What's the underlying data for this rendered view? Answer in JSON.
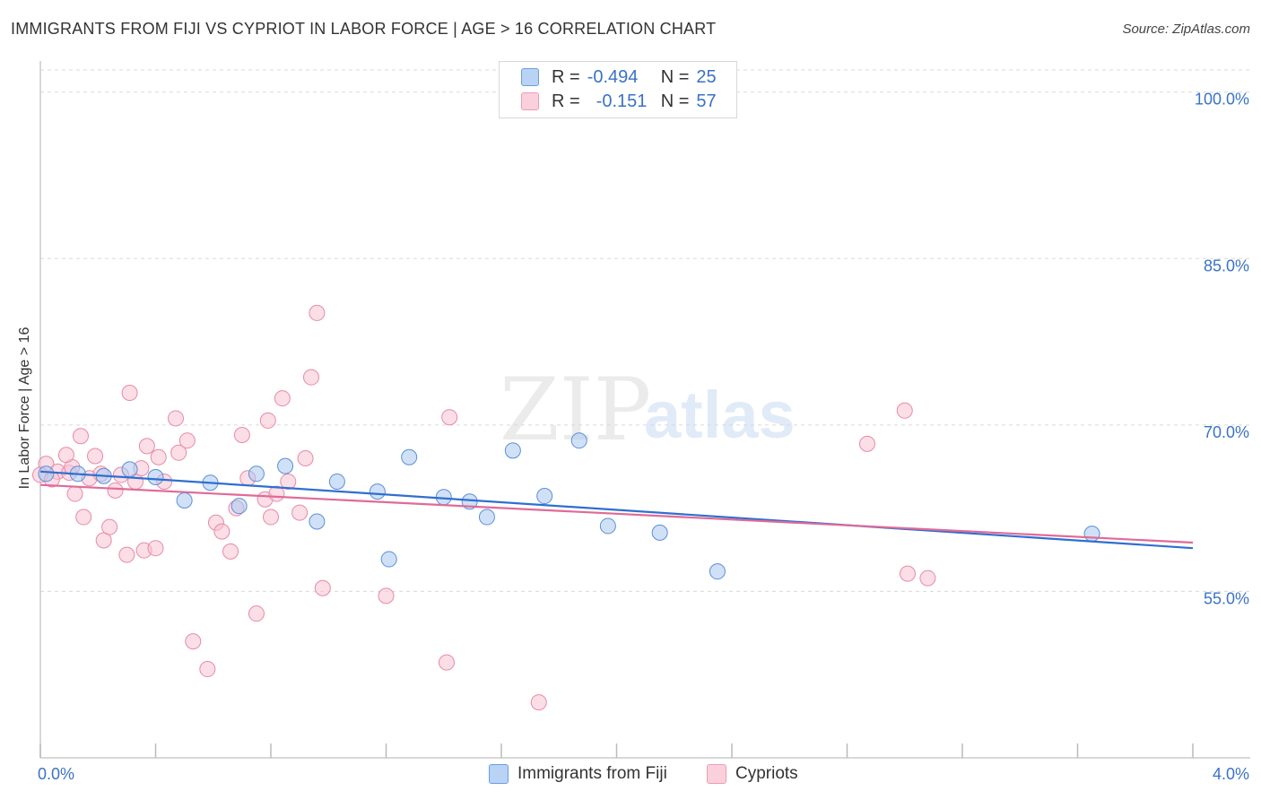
{
  "header": {
    "title": "IMMIGRANTS FROM FIJI VS CYPRIOT IN LABOR FORCE | AGE > 16 CORRELATION CHART",
    "source": "Source: ZipAtlas.com"
  },
  "watermark": {
    "zip": "ZIP",
    "atlas": "atlas"
  },
  "legend": {
    "series1": {
      "r_label": "R =",
      "r_value": "-0.494",
      "n_label": "N =",
      "n_value": "25"
    },
    "series2": {
      "r_label": "R =",
      "r_value": "-0.151",
      "n_label": "N =",
      "n_value": "57"
    }
  },
  "bottom_legend": {
    "series1": "Immigrants from Fiji",
    "series2": "Cypriots"
  },
  "colors": {
    "blue_fill": "#a9c8f0",
    "blue_stroke": "#5b8fd8",
    "blue_line": "#2f6fd0",
    "pink_fill": "#f7c2d2",
    "pink_stroke": "#e88aa8",
    "pink_line": "#e06a98",
    "tick_label": "#3a72c8",
    "grid": "#d9d9d9"
  },
  "chart_data": {
    "type": "scatter",
    "title": "IMMIGRANTS FROM FIJI VS CYPRIOT IN LABOR FORCE | AGE > 16 CORRELATION CHART",
    "xlabel": "",
    "ylabel": "In Labor Force | Age > 16",
    "xlim": [
      0,
      4.0
    ],
    "ylim": [
      40.0,
      102.0
    ],
    "x_tick_labels": [
      "0.0%",
      "4.0%"
    ],
    "y_ticks": [
      55,
      70,
      85,
      100
    ],
    "y_tick_labels": [
      "55.0%",
      "70.0%",
      "85.0%",
      "100.0%"
    ],
    "series": [
      {
        "name": "Immigrants from Fiji",
        "color": "#a9c8f0",
        "points": [
          [
            0.02,
            65.6
          ],
          [
            0.13,
            65.6
          ],
          [
            0.22,
            65.4
          ],
          [
            0.31,
            66.0
          ],
          [
            0.4,
            65.3
          ],
          [
            0.5,
            63.2
          ],
          [
            0.59,
            64.8
          ],
          [
            0.69,
            62.7
          ],
          [
            0.75,
            65.6
          ],
          [
            0.85,
            66.3
          ],
          [
            0.96,
            61.3
          ],
          [
            1.03,
            64.9
          ],
          [
            1.17,
            64.0
          ],
          [
            1.21,
            57.9
          ],
          [
            1.28,
            67.1
          ],
          [
            1.4,
            63.5
          ],
          [
            1.49,
            63.1
          ],
          [
            1.55,
            61.7
          ],
          [
            1.64,
            67.7
          ],
          [
            1.75,
            63.6
          ],
          [
            1.87,
            68.6
          ],
          [
            1.97,
            60.9
          ],
          [
            2.15,
            60.3
          ],
          [
            2.35,
            56.8
          ],
          [
            3.65,
            60.2
          ]
        ],
        "trend": {
          "x": [
            0.0,
            4.0
          ],
          "y": [
            65.8,
            58.9
          ]
        }
      },
      {
        "name": "Cypriots",
        "color": "#f7c2d2",
        "points": [
          [
            0.02,
            66.5
          ],
          [
            0.06,
            65.8
          ],
          [
            0.1,
            65.7
          ],
          [
            0.11,
            66.2
          ],
          [
            0.12,
            63.8
          ],
          [
            0.14,
            69.0
          ],
          [
            0.15,
            61.7
          ],
          [
            0.17,
            65.2
          ],
          [
            0.19,
            67.2
          ],
          [
            0.21,
            65.6
          ],
          [
            0.22,
            59.6
          ],
          [
            0.24,
            60.8
          ],
          [
            0.26,
            64.1
          ],
          [
            0.28,
            65.5
          ],
          [
            0.3,
            58.3
          ],
          [
            0.31,
            72.9
          ],
          [
            0.33,
            64.9
          ],
          [
            0.35,
            66.1
          ],
          [
            0.36,
            58.7
          ],
          [
            0.37,
            68.1
          ],
          [
            0.4,
            58.9
          ],
          [
            0.41,
            67.1
          ],
          [
            0.43,
            64.9
          ],
          [
            0.47,
            70.6
          ],
          [
            0.48,
            67.5
          ],
          [
            0.51,
            68.6
          ],
          [
            0.53,
            50.5
          ],
          [
            0.58,
            48.0
          ],
          [
            0.61,
            61.2
          ],
          [
            0.63,
            60.4
          ],
          [
            0.66,
            58.6
          ],
          [
            0.68,
            62.5
          ],
          [
            0.7,
            69.1
          ],
          [
            0.72,
            65.2
          ],
          [
            0.75,
            53.0
          ],
          [
            0.78,
            63.3
          ],
          [
            0.79,
            70.4
          ],
          [
            0.8,
            61.7
          ],
          [
            0.82,
            63.8
          ],
          [
            0.84,
            72.4
          ],
          [
            0.86,
            64.9
          ],
          [
            0.9,
            62.1
          ],
          [
            0.92,
            67.0
          ],
          [
            0.94,
            74.3
          ],
          [
            0.96,
            80.1
          ],
          [
            0.98,
            55.3
          ],
          [
            1.2,
            54.6
          ],
          [
            1.41,
            48.6
          ],
          [
            1.42,
            70.7
          ],
          [
            1.73,
            45.0
          ],
          [
            2.87,
            68.3
          ],
          [
            3.0,
            71.3
          ],
          [
            3.01,
            56.6
          ],
          [
            3.08,
            56.2
          ],
          [
            0.0,
            65.5
          ],
          [
            0.04,
            65.1
          ],
          [
            0.09,
            67.3
          ]
        ],
        "trend": {
          "x": [
            0.0,
            4.0
          ],
          "y": [
            64.6,
            59.4
          ]
        }
      }
    ],
    "grid": true,
    "legend_position": "top-center"
  }
}
